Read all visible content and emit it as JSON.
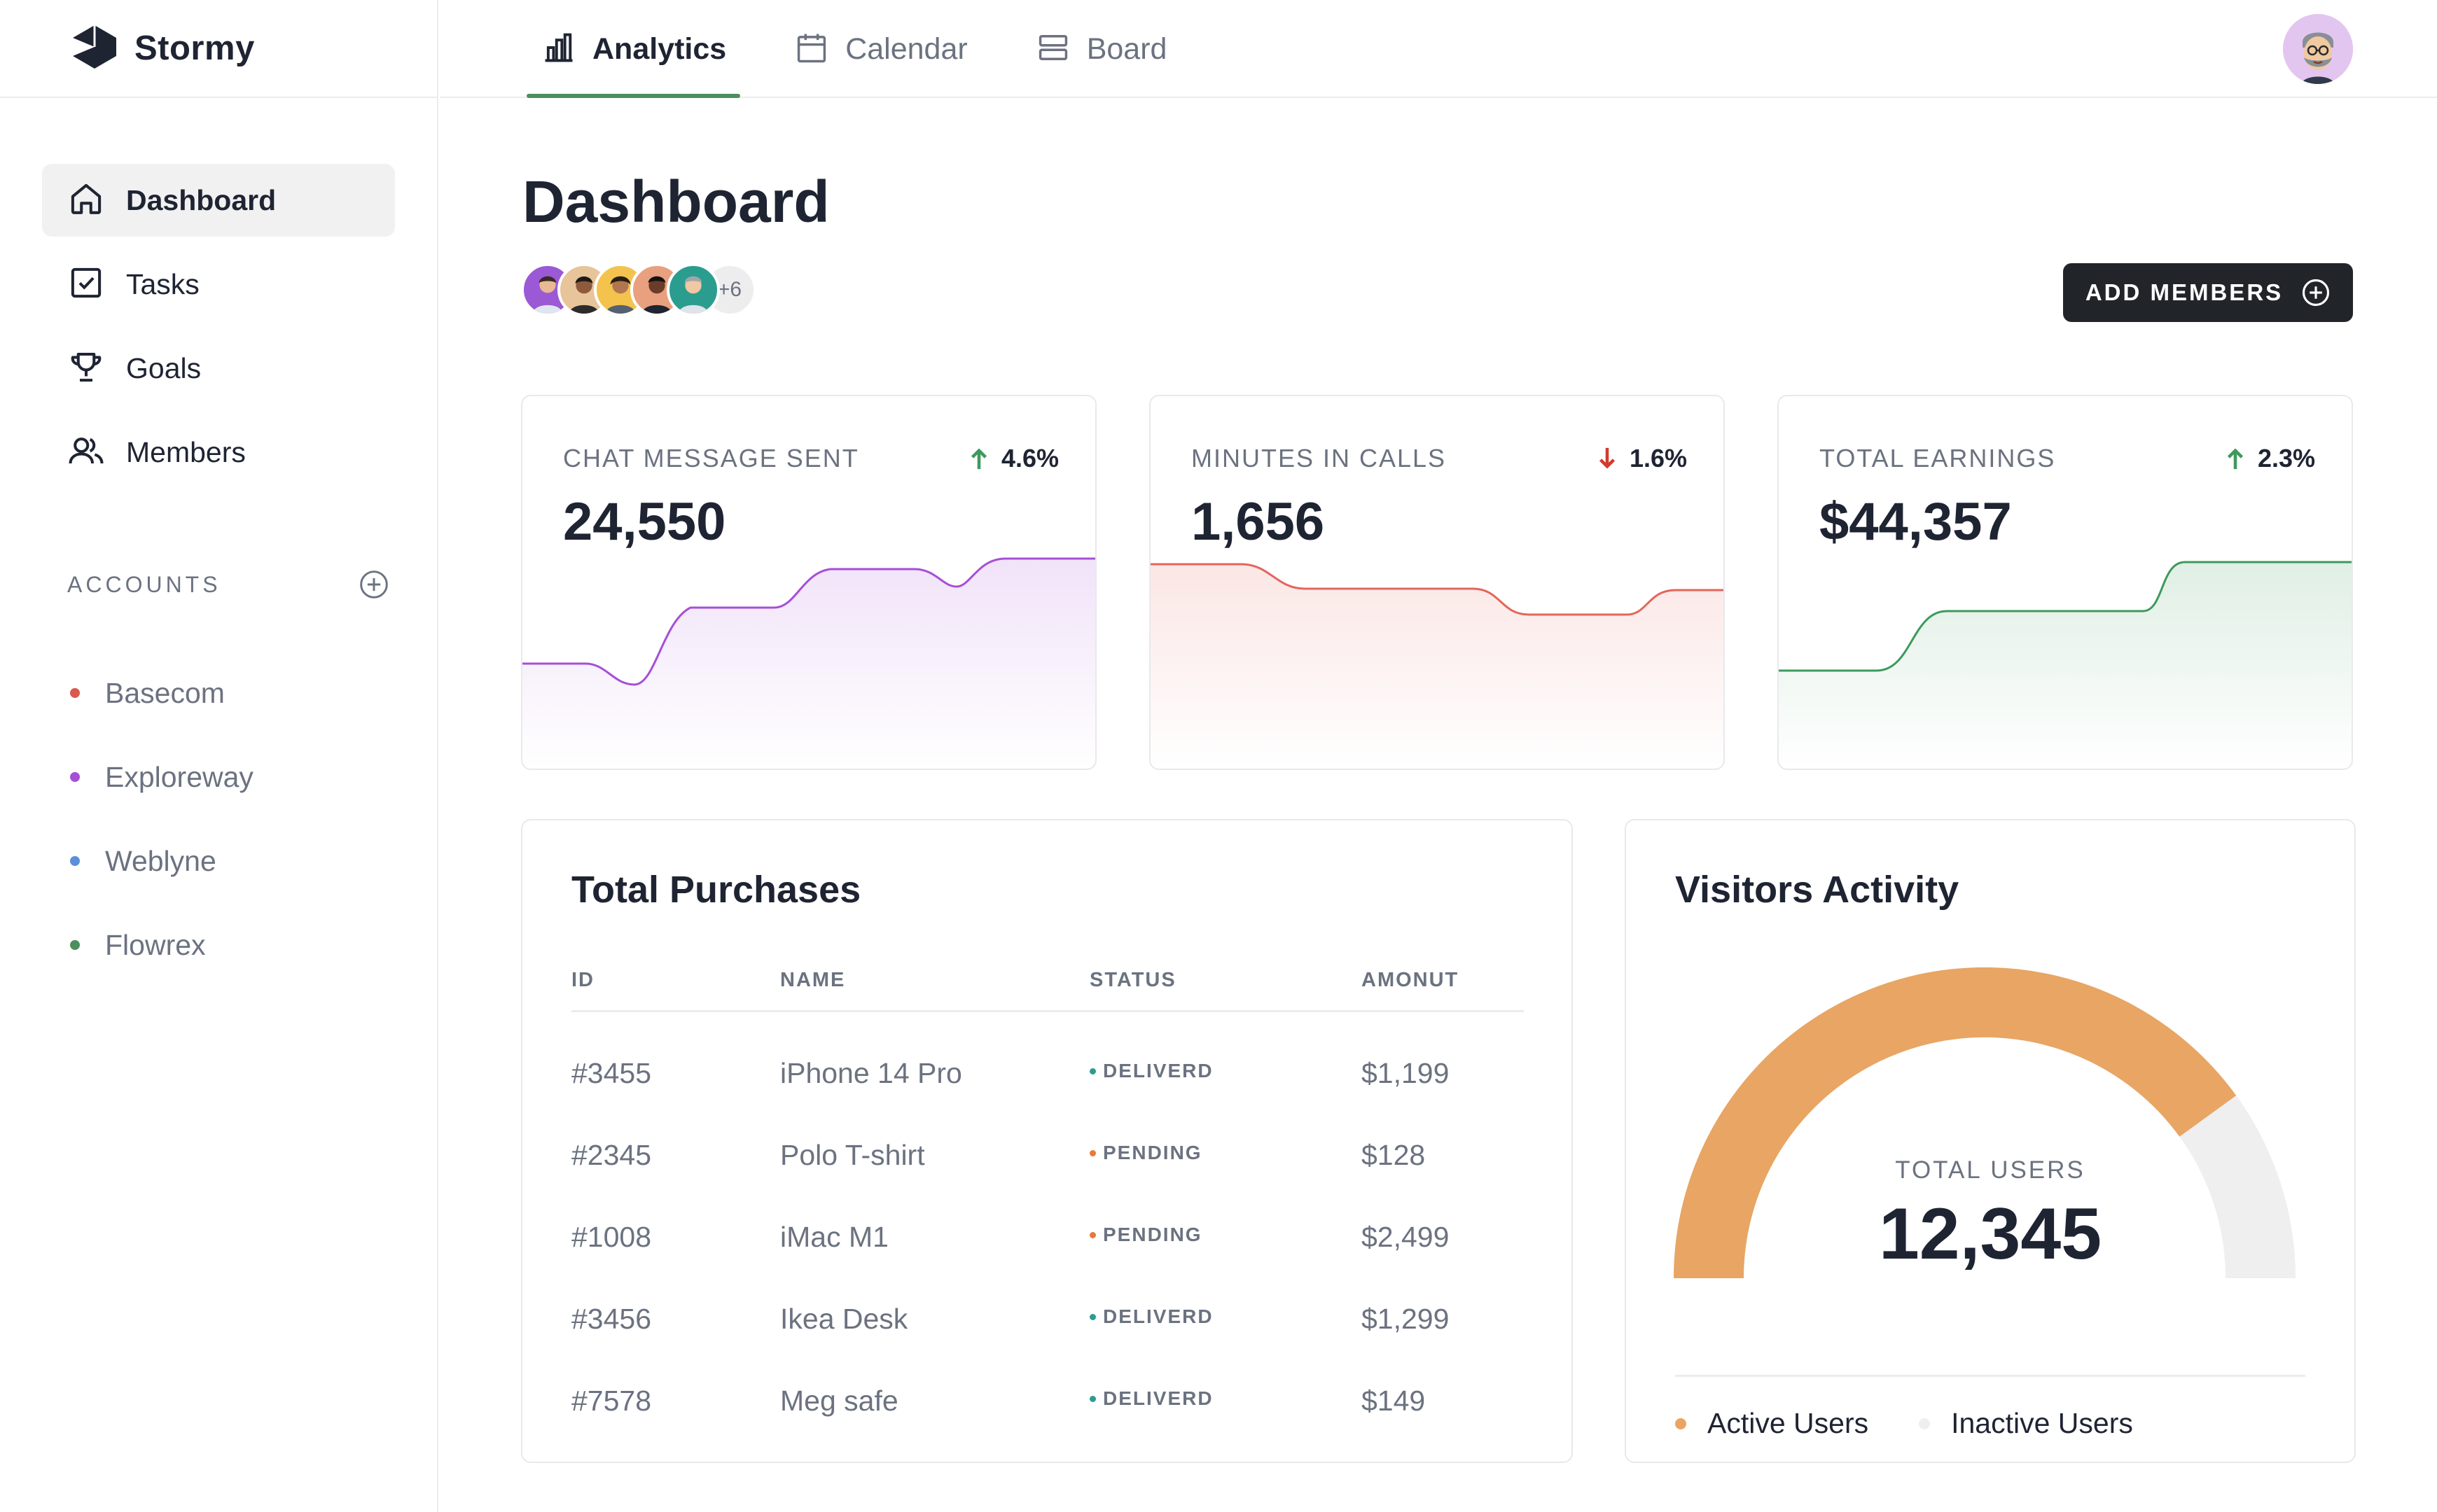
{
  "app": {
    "name": "Stormy"
  },
  "sidebar": {
    "nav": [
      {
        "label": "Dashboard",
        "icon": "home-icon",
        "active": true
      },
      {
        "label": "Tasks",
        "icon": "checkbox-icon",
        "active": false
      },
      {
        "label": "Goals",
        "icon": "trophy-icon",
        "active": false
      },
      {
        "label": "Members",
        "icon": "users-icon",
        "active": false
      }
    ],
    "accounts_title": "ACCOUNTS",
    "accounts": [
      {
        "label": "Basecom",
        "color": "#d9594c"
      },
      {
        "label": "Exploreway",
        "color": "#a64fd6"
      },
      {
        "label": "Weblyne",
        "color": "#5b8fd9"
      },
      {
        "label": "Flowrex",
        "color": "#4e8e5e"
      }
    ]
  },
  "topbar": {
    "tabs": [
      {
        "label": "Analytics",
        "icon": "bar-chart-icon",
        "active": true
      },
      {
        "label": "Calendar",
        "icon": "calendar-icon",
        "active": false
      },
      {
        "label": "Board",
        "icon": "board-icon",
        "active": false
      }
    ],
    "accent": "#4e8e5e"
  },
  "page": {
    "title": "Dashboard",
    "members_more": "+6",
    "add_members_label": "ADD MEMBERS"
  },
  "stats": [
    {
      "label": "CHAT MESSAGE SENT",
      "value": "24,550",
      "change": "4.6%",
      "direction": "up",
      "color": "#a64fd6"
    },
    {
      "label": "MINUTES IN CALLS",
      "value": "1,656",
      "change": "1.6%",
      "direction": "down",
      "color": "#d9594c"
    },
    {
      "label": "TOTAL EARNINGS",
      "value": "$44,357",
      "change": "2.3%",
      "direction": "up",
      "color": "#3d9a5c"
    }
  ],
  "purchases": {
    "title": "Total Purchases",
    "columns": [
      "ID",
      "NAME",
      "STATUS",
      "AMONUT"
    ],
    "rows": [
      {
        "id": "#3455",
        "name": "iPhone 14 Pro",
        "status": "DELIVERD",
        "status_color": "#2a9d8f",
        "amount": "$1,199"
      },
      {
        "id": "#2345",
        "name": "Polo T-shirt",
        "status": "PENDING",
        "status_color": "#e9783a",
        "amount": "$128"
      },
      {
        "id": "#1008",
        "name": "iMac M1",
        "status": "PENDING",
        "status_color": "#e9783a",
        "amount": "$2,499"
      },
      {
        "id": "#3456",
        "name": "Ikea Desk",
        "status": "DELIVERD",
        "status_color": "#2a9d8f",
        "amount": "$1,299"
      },
      {
        "id": "#7578",
        "name": "Meg safe",
        "status": "DELIVERD",
        "status_color": "#2a9d8f",
        "amount": "$149"
      }
    ]
  },
  "visitors": {
    "title": "Visitors Activity",
    "total_label": "TOTAL USERS",
    "total_value": "12,345",
    "active_fraction": 0.8,
    "legend": [
      {
        "label": "Active Users",
        "color": "#e8a563"
      },
      {
        "label": "Inactive Users",
        "color": "#efefef"
      }
    ]
  }
}
